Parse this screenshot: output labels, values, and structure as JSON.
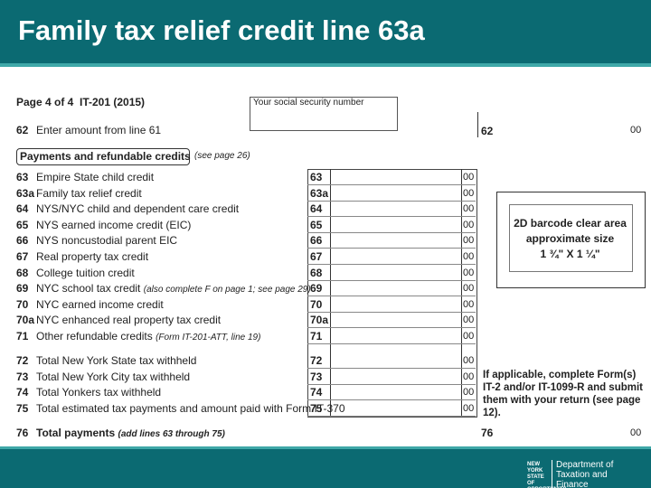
{
  "header": {
    "title": "Family tax relief credit line 63a"
  },
  "form": {
    "page": "Page 4 of 4",
    "form_id": "IT-201 (2015)",
    "ssn_label": "Your social security number",
    "line62": {
      "num": "62",
      "label": "Enter amount from line 61",
      "box": "62",
      "cents": "00"
    },
    "section": {
      "title": "Payments and refundable credits",
      "note": "(see page 26)"
    },
    "rows": [
      {
        "num": "63",
        "label": "Empire State child credit",
        "box": "63",
        "cents": "00"
      },
      {
        "num": "63a",
        "label": "Family tax relief credit",
        "box": "63a",
        "cents": "00"
      },
      {
        "num": "64",
        "label": "NYS/NYC child and dependent care credit",
        "box": "64",
        "cents": "00"
      },
      {
        "num": "65",
        "label": "NYS earned income credit (EIC)",
        "box": "65",
        "cents": "00"
      },
      {
        "num": "66",
        "label": "NYS noncustodial parent EIC",
        "box": "66",
        "cents": "00"
      },
      {
        "num": "67",
        "label": "Real property tax credit",
        "box": "67",
        "cents": "00"
      },
      {
        "num": "68",
        "label": "College tuition credit",
        "box": "68",
        "cents": "00"
      },
      {
        "num": "69",
        "label": "NYC school tax credit",
        "note": "(also complete F on page 1; see page 29)",
        "box": "69",
        "cents": "00"
      },
      {
        "num": "70",
        "label": "NYC earned income credit",
        "box": "70",
        "cents": "00"
      },
      {
        "num": "70a",
        "label": "NYC enhanced real property tax credit",
        "box": "70a",
        "cents": "00"
      },
      {
        "num": "71",
        "label": "Other refundable credits",
        "note": "(Form IT-201-ATT, line 19)",
        "box": "71",
        "cents": "00"
      },
      {
        "num": "72",
        "label": "Total New York State tax withheld",
        "box": "72",
        "cents": "00"
      },
      {
        "num": "73",
        "label": "Total New York City tax withheld",
        "box": "73",
        "cents": "00"
      },
      {
        "num": "74",
        "label": "Total Yonkers tax withheld",
        "box": "74",
        "cents": "00"
      },
      {
        "num": "75",
        "label": "Total estimated tax payments and amount paid with Form IT-370",
        "box": "75",
        "cents": "00"
      }
    ],
    "barcode": [
      "2D barcode clear area",
      "approximate size",
      "1 ¾\" X 1 ¼\""
    ],
    "note": "If applicable, complete Form(s) IT-2 and/or IT-1099-R and submit them with your return (see page 12).",
    "line76": {
      "num": "76",
      "label": "Total payments",
      "note": "(add lines 63 through 75)",
      "box": "76",
      "cents": "00"
    }
  },
  "footer": {
    "logo": "NEW YORK STATE OF OPPORTUNITY",
    "department": "Department of Taxation and Finance"
  }
}
